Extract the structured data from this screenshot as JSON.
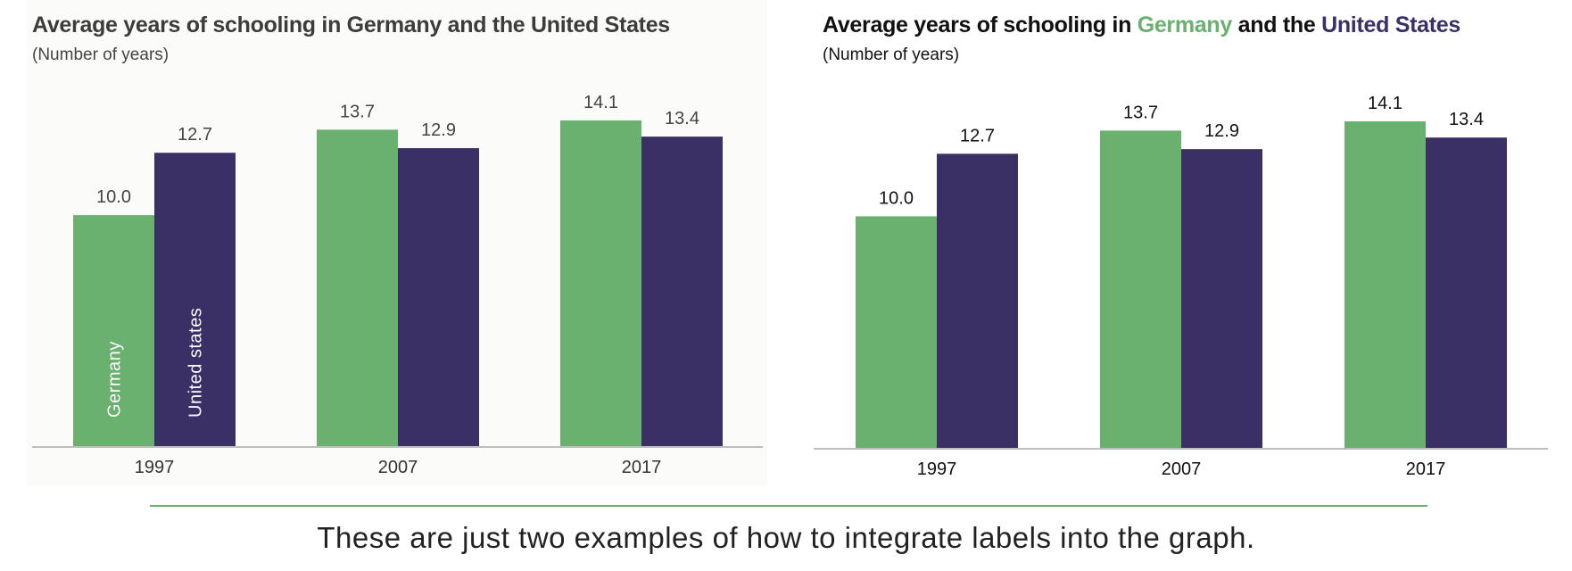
{
  "colors": {
    "germany": "#6ab06f",
    "us": "#3b3065",
    "axis": "#bdbdbd",
    "divider": "#6ab06f"
  },
  "left_chart": {
    "title": "Average years of schooling in Germany and the United States",
    "subtitle": "(Number of years)",
    "inline_labels": {
      "germany": "Germany",
      "us": "United states"
    }
  },
  "right_chart": {
    "title_parts": {
      "prefix": "Average years of schooling in ",
      "germany": "Germany",
      "middle": " and the ",
      "us": "United States"
    },
    "subtitle": "(Number of years)"
  },
  "chart_data": [
    {
      "type": "bar",
      "title": "Average years of schooling in Germany and the United States",
      "subtitle": "(Number of years)",
      "categories": [
        "1997",
        "2007",
        "2017"
      ],
      "series": [
        {
          "name": "Germany",
          "values": [
            10.0,
            13.7,
            14.1
          ]
        },
        {
          "name": "United states",
          "values": [
            12.7,
            12.9,
            13.4
          ]
        }
      ],
      "ylim": [
        0,
        14.1
      ],
      "grid": false,
      "legend": "inline labels inside first bars"
    },
    {
      "type": "bar",
      "title": "Average years of schooling in Germany and the United States",
      "subtitle": "(Number of years)",
      "categories": [
        "1997",
        "2007",
        "2017"
      ],
      "series": [
        {
          "name": "Germany",
          "values": [
            10.0,
            13.7,
            14.1
          ]
        },
        {
          "name": "United States",
          "values": [
            12.7,
            12.9,
            13.4
          ]
        }
      ],
      "ylim": [
        0,
        14.1
      ],
      "grid": false,
      "legend": "colored words in title"
    }
  ],
  "caption": "These are just two examples of how to integrate labels into the graph."
}
